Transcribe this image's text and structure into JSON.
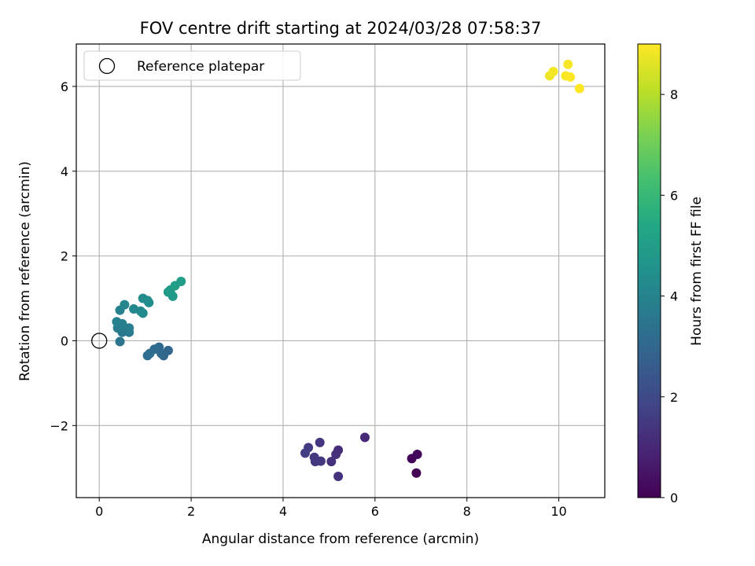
{
  "chart_data": {
    "type": "scatter",
    "title": "FOV centre drift starting at 2024/03/28 07:58:37",
    "xlabel": "Angular distance from reference (arcmin)",
    "ylabel": "Rotation from reference (arcmin)",
    "xlim": [
      -0.5,
      11
    ],
    "ylim": [
      -3.7,
      7
    ],
    "xticks": [
      0,
      2,
      4,
      6,
      8,
      10
    ],
    "yticks": [
      -2,
      0,
      2,
      4,
      6
    ],
    "xtick_labels": [
      "0",
      "2",
      "4",
      "6",
      "8",
      "10"
    ],
    "ytick_labels": [
      "−2",
      "0",
      "2",
      "4",
      "6"
    ],
    "grid": true,
    "legend": {
      "placement": "top-left",
      "entries": [
        "Reference platepar"
      ]
    },
    "reference_point": {
      "label": "Reference platepar",
      "x": 0,
      "y": 0
    },
    "colorbar": {
      "label": "Hours from first FF file",
      "colormap": "viridis",
      "range": [
        0,
        9
      ],
      "ticks": [
        0,
        2,
        4,
        6,
        8
      ],
      "tick_labels": [
        "0",
        "2",
        "4",
        "6",
        "8"
      ]
    },
    "points": [
      {
        "x": 6.9,
        "y": -3.12,
        "h": 0.0
      },
      {
        "x": 6.8,
        "y": -2.78,
        "h": 0.1
      },
      {
        "x": 6.92,
        "y": -2.68,
        "h": 0.2
      },
      {
        "x": 5.78,
        "y": -2.28,
        "h": 1.05
      },
      {
        "x": 5.2,
        "y": -2.58,
        "h": 1.15
      },
      {
        "x": 5.15,
        "y": -2.68,
        "h": 1.2
      },
      {
        "x": 5.05,
        "y": -2.85,
        "h": 1.25
      },
      {
        "x": 5.2,
        "y": -3.2,
        "h": 1.3
      },
      {
        "x": 4.8,
        "y": -2.4,
        "h": 1.35
      },
      {
        "x": 4.82,
        "y": -2.84,
        "h": 1.4
      },
      {
        "x": 4.68,
        "y": -2.75,
        "h": 1.45
      },
      {
        "x": 4.7,
        "y": -2.85,
        "h": 1.5
      },
      {
        "x": 4.55,
        "y": -2.52,
        "h": 1.55
      },
      {
        "x": 4.48,
        "y": -2.65,
        "h": 1.6
      },
      {
        "x": 1.5,
        "y": -0.23,
        "h": 2.9
      },
      {
        "x": 1.4,
        "y": -0.35,
        "h": 3.0
      },
      {
        "x": 1.35,
        "y": -0.3,
        "h": 3.05
      },
      {
        "x": 1.3,
        "y": -0.15,
        "h": 3.1
      },
      {
        "x": 1.2,
        "y": -0.2,
        "h": 3.15
      },
      {
        "x": 1.1,
        "y": -0.3,
        "h": 3.2
      },
      {
        "x": 1.05,
        "y": -0.35,
        "h": 3.25
      },
      {
        "x": 0.45,
        "y": -0.02,
        "h": 3.5
      },
      {
        "x": 0.5,
        "y": 0.2,
        "h": 3.6
      },
      {
        "x": 0.65,
        "y": 0.2,
        "h": 3.65
      },
      {
        "x": 0.58,
        "y": 0.25,
        "h": 3.7
      },
      {
        "x": 0.4,
        "y": 0.3,
        "h": 3.75
      },
      {
        "x": 0.65,
        "y": 0.3,
        "h": 3.8
      },
      {
        "x": 0.5,
        "y": 0.4,
        "h": 3.85
      },
      {
        "x": 0.38,
        "y": 0.45,
        "h": 3.9
      },
      {
        "x": 0.45,
        "y": 0.72,
        "h": 4.0
      },
      {
        "x": 0.55,
        "y": 0.85,
        "h": 4.1
      },
      {
        "x": 0.75,
        "y": 0.75,
        "h": 4.15
      },
      {
        "x": 0.9,
        "y": 0.7,
        "h": 4.2
      },
      {
        "x": 0.95,
        "y": 0.65,
        "h": 4.25
      },
      {
        "x": 0.95,
        "y": 1.0,
        "h": 4.3
      },
      {
        "x": 1.05,
        "y": 0.95,
        "h": 4.35
      },
      {
        "x": 1.08,
        "y": 0.9,
        "h": 4.4
      },
      {
        "x": 1.5,
        "y": 1.15,
        "h": 4.8
      },
      {
        "x": 1.6,
        "y": 1.05,
        "h": 4.85
      },
      {
        "x": 1.55,
        "y": 1.2,
        "h": 4.9
      },
      {
        "x": 1.65,
        "y": 1.3,
        "h": 4.95
      },
      {
        "x": 1.78,
        "y": 1.4,
        "h": 5.0
      },
      {
        "x": 9.8,
        "y": 6.25,
        "h": 8.8
      },
      {
        "x": 9.88,
        "y": 6.35,
        "h": 8.85
      },
      {
        "x": 10.2,
        "y": 6.52,
        "h": 8.9
      },
      {
        "x": 10.15,
        "y": 6.25,
        "h": 8.95
      },
      {
        "x": 10.25,
        "y": 6.22,
        "h": 9.0
      },
      {
        "x": 10.45,
        "y": 5.95,
        "h": 9.0
      }
    ]
  }
}
